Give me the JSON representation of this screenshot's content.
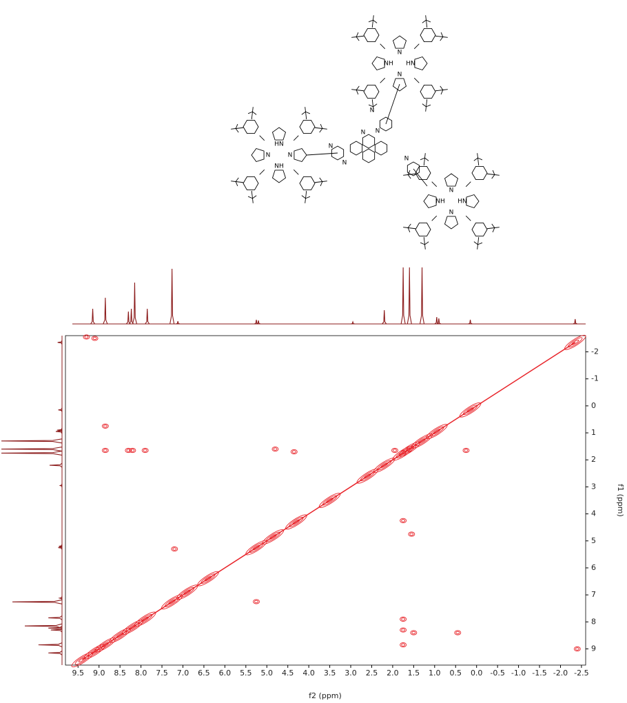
{
  "chart_data": {
    "type": "contour",
    "xlabel": "f2 (ppm)",
    "ylabel": "f1 (ppm)",
    "xlim": [
      9.8,
      -2.6
    ],
    "ylim": [
      -2.6,
      9.6
    ],
    "xticks": [
      9.5,
      {
        "value": 9,
        "label": "9.0"
      },
      8.5,
      {
        "value": 8,
        "label": "8.0"
      },
      7.5,
      {
        "value": 7,
        "label": "7.0"
      },
      6.5,
      {
        "value": 6,
        "label": "6.0"
      },
      5.5,
      {
        "value": 5,
        "label": "5.0"
      },
      4.5,
      {
        "value": 4,
        "label": "4.0"
      },
      3.5,
      {
        "value": 3,
        "label": "3.0"
      },
      2.5,
      {
        "value": 2,
        "label": "2.0"
      },
      1.5,
      {
        "value": 1,
        "label": "1.0"
      },
      0.5,
      {
        "value": 0,
        "label": "0.0"
      },
      -0.5,
      {
        "value": -1,
        "label": "-1.0"
      },
      -1.5,
      {
        "value": -2,
        "label": "-2.0"
      },
      -2.5
    ],
    "yticks": [
      -2,
      -1,
      0,
      1,
      2,
      3,
      4,
      5,
      6,
      7,
      8,
      9
    ],
    "color": "#e8242a",
    "projection_color": "#8b1a1a",
    "spectrum": {
      "x": [
        9.15,
        8.85,
        8.3,
        8.23,
        8.15,
        7.85,
        7.26,
        7.12,
        5.25,
        5.2,
        2.95,
        2.2,
        1.75,
        1.6,
        1.3,
        0.95,
        0.9,
        0.15,
        -2.35
      ],
      "values": [
        22,
        38,
        18,
        22,
        60,
        22,
        80,
        4,
        6,
        5,
        3,
        20,
        100,
        100,
        100,
        10,
        8,
        6,
        7
      ]
    },
    "diagonal": {
      "x": [
        9.4,
        9.1,
        8.85,
        8.5,
        8.2,
        7.9,
        7.26,
        6.9,
        6.4,
        5.25,
        4.85,
        4.3,
        3.5,
        2.6,
        2.2,
        1.75,
        1.6,
        1.3,
        0.95,
        0.15,
        -2.35
      ],
      "values": [
        9.4,
        9.1,
        8.85,
        8.5,
        8.2,
        7.9,
        7.26,
        6.9,
        6.4,
        5.25,
        4.85,
        4.3,
        3.5,
        2.6,
        2.2,
        1.75,
        1.6,
        1.3,
        0.95,
        0.15,
        -2.35
      ]
    },
    "cross_peaks": {
      "x": [
        8.85,
        8.85,
        8.3,
        8.2,
        7.9,
        4.8,
        4.35,
        7.2,
        5.25,
        1.75,
        1.55,
        1.75,
        1.75,
        1.5,
        0.45,
        1.75,
        1.95,
        0.25,
        -2.4,
        9.3,
        9.1
      ],
      "values": [
        0.75,
        1.65,
        1.65,
        1.65,
        1.65,
        1.6,
        1.7,
        5.3,
        7.25,
        4.25,
        4.75,
        7.9,
        8.3,
        8.4,
        8.4,
        8.85,
        1.65,
        1.65,
        9.0,
        -2.55,
        -2.5
      ]
    }
  },
  "structure": {
    "labels": [
      "HN",
      "N",
      "NH",
      "N",
      "N",
      "NH",
      "N",
      "HN",
      "HN",
      "N",
      "NH",
      "N",
      "N",
      "N",
      "N",
      "N",
      "N",
      "N"
    ]
  }
}
